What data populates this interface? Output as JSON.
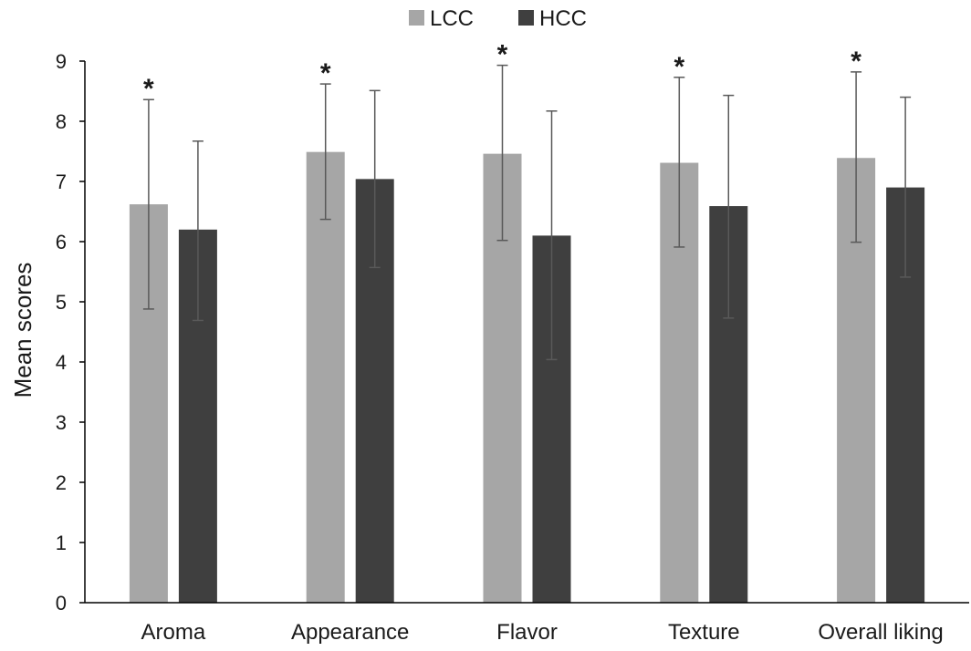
{
  "chart_data": {
    "type": "bar",
    "title": "",
    "xlabel": "",
    "ylabel": "Mean scores",
    "ylim": [
      0,
      9
    ],
    "yticks": [
      0,
      1,
      2,
      3,
      4,
      5,
      6,
      7,
      8,
      9
    ],
    "categories": [
      "Aroma",
      "Appearance",
      "Flavor",
      "Texture",
      "Overall liking"
    ],
    "series": [
      {
        "name": "LCC",
        "color": "#a6a6a6",
        "values": [
          6.62,
          7.49,
          7.46,
          7.31,
          7.39
        ],
        "error_low": [
          4.88,
          6.37,
          6.02,
          5.91,
          5.99
        ],
        "error_high": [
          8.36,
          8.62,
          8.93,
          8.73,
          8.82
        ]
      },
      {
        "name": "HCC",
        "color": "#3f3f3f",
        "values": [
          6.2,
          7.04,
          6.1,
          6.59,
          6.9
        ],
        "error_low": [
          4.69,
          5.57,
          4.04,
          4.73,
          5.41
        ],
        "error_high": [
          7.67,
          8.51,
          8.17,
          8.43,
          8.4
        ]
      }
    ],
    "significance": [
      "*",
      "*",
      "*",
      "*",
      "*"
    ],
    "legend_position": "top-center",
    "grid": false,
    "error_bar_color": "#595959",
    "axis_color": "#000000"
  }
}
